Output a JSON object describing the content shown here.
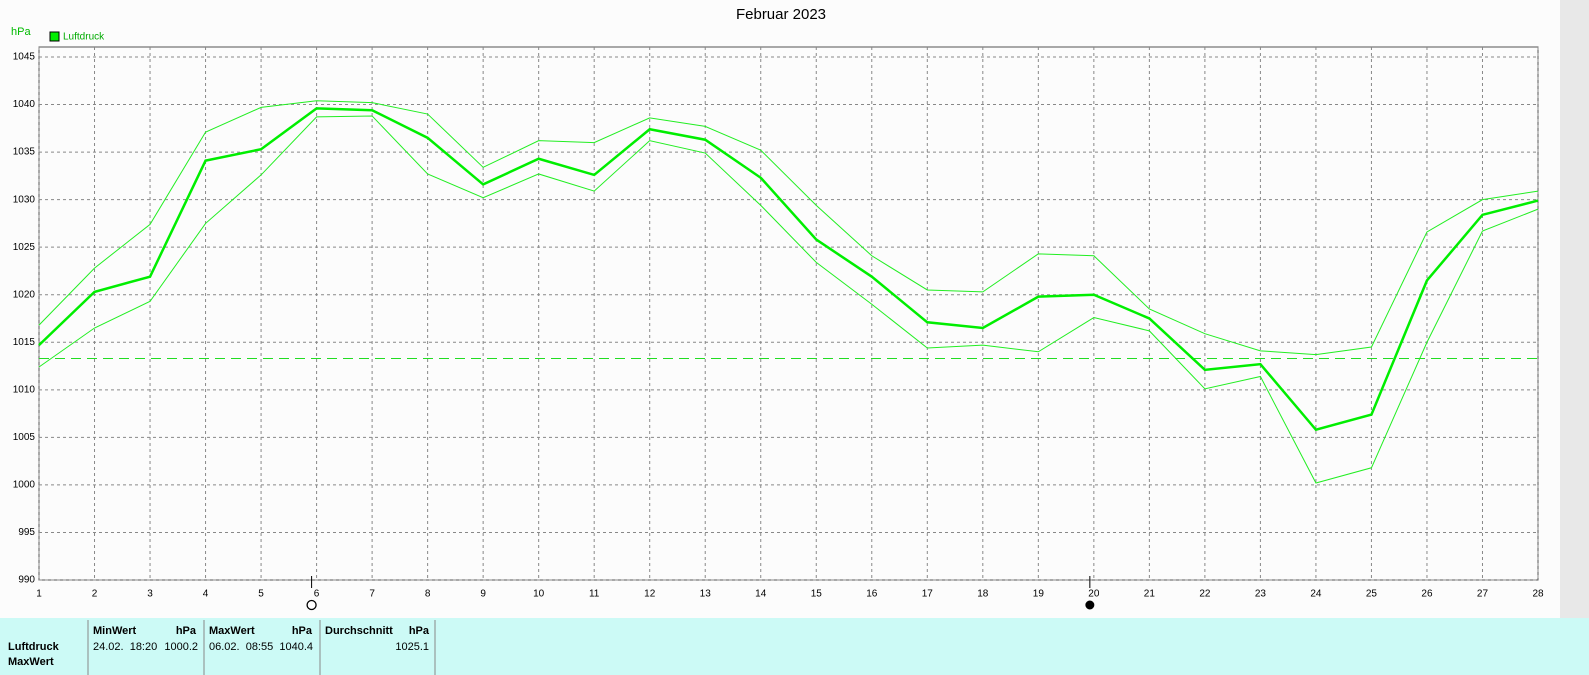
{
  "chart_data": {
    "type": "line",
    "title": "Februar 2023",
    "y_label": "hPa",
    "x": [
      1,
      2,
      3,
      4,
      5,
      6,
      7,
      8,
      9,
      10,
      11,
      12,
      13,
      14,
      15,
      16,
      17,
      18,
      19,
      20,
      21,
      22,
      23,
      24,
      25,
      26,
      27,
      28
    ],
    "xlim": [
      1,
      28
    ],
    "ylim": [
      990,
      1045
    ],
    "yticks": [
      990,
      995,
      1000,
      1005,
      1010,
      1015,
      1020,
      1025,
      1030,
      1035,
      1040,
      1045
    ],
    "grid": true,
    "series": [
      {
        "name": "Luftdruck",
        "color": "#00ee00",
        "values": [
          1014.7,
          1020.3,
          1021.9,
          1034.1,
          1035.3,
          1039.6,
          1039.4,
          1036.5,
          1031.6,
          1034.3,
          1032.6,
          1037.4,
          1036.3,
          1032.3,
          1025.8,
          1021.9,
          1017.1,
          1016.5,
          1019.8,
          1020.0,
          1017.5,
          1012.1,
          1012.7,
          1005.8,
          1007.4,
          1021.5,
          1028.4,
          1029.9
        ]
      },
      {
        "color": "#22ee22",
        "values": [
          1016.8,
          1022.8,
          1027.4,
          1037.1,
          1039.7,
          1040.4,
          1040.2,
          1039.0,
          1033.4,
          1036.2,
          1036.0,
          1038.6,
          1037.7,
          1035.2,
          1029.4,
          1024.1,
          1020.5,
          1020.3,
          1024.3,
          1024.1,
          1018.5,
          1015.9,
          1014.1,
          1013.7,
          1014.5,
          1026.6,
          1030.0,
          1030.9
        ]
      },
      {
        "color": "#22ee22",
        "values": [
          1012.4,
          1016.5,
          1019.3,
          1027.5,
          1032.6,
          1038.7,
          1038.8,
          1032.7,
          1030.2,
          1032.7,
          1030.9,
          1036.2,
          1034.9,
          1029.4,
          1023.4,
          1019.0,
          1014.4,
          1014.7,
          1014.0,
          1017.6,
          1016.2,
          1010.1,
          1011.4,
          1000.2,
          1001.8,
          1015.0,
          1026.7,
          1029.0
        ]
      }
    ],
    "reference_line": 1013.3,
    "markers": {
      "full_moon": 6,
      "new_moon": 20
    }
  },
  "summary": {
    "row_label": "Luftdruck",
    "row_label_2": "MaxWert",
    "columns": [
      {
        "header": "MinWert",
        "unit": "hPa",
        "time": "24.02.  18:20",
        "value": 1000.2
      },
      {
        "header": "MaxWert",
        "unit": "hPa",
        "time": "06.02.  08:55",
        "value": 1040.4
      },
      {
        "header": "Durchschnitt",
        "unit": "hPa",
        "value": 1025.1
      }
    ]
  }
}
